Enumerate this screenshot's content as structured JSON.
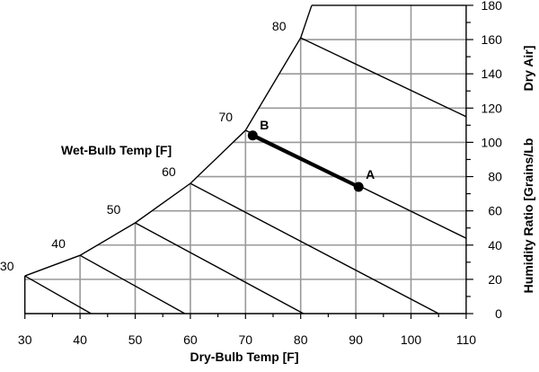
{
  "chart_data": {
    "type": "line",
    "title": "",
    "xlabel": "Dry-Bulb Temp [F]",
    "ylabel_part1": "Humidity Ratio [Grains/Lb",
    "ylabel_part2": "Dry Air]",
    "wetbulb_label": "Wet-Bulb Temp [F]",
    "xlim": [
      30,
      110
    ],
    "ylim": [
      0,
      180
    ],
    "x_ticks": [
      "30",
      "40",
      "50",
      "60",
      "70",
      "80",
      "90",
      "100",
      "110"
    ],
    "y_ticks": [
      "0",
      "20",
      "40",
      "60",
      "80",
      "100",
      "120",
      "140",
      "160",
      "180"
    ],
    "grid": true,
    "saturation_curve": [
      [
        30,
        22
      ],
      [
        40,
        34
      ],
      [
        50,
        53
      ],
      [
        60,
        76
      ],
      [
        70,
        107
      ],
      [
        80,
        161
      ],
      [
        82,
        180
      ]
    ],
    "wet_bulb_lines": [
      {
        "label": "30",
        "points": [
          [
            30,
            22
          ],
          [
            42,
            0
          ]
        ]
      },
      {
        "label": "40",
        "points": [
          [
            40,
            34
          ],
          [
            59,
            0
          ]
        ]
      },
      {
        "label": "50",
        "points": [
          [
            50,
            53
          ],
          [
            80.5,
            0
          ]
        ]
      },
      {
        "label": "60",
        "points": [
          [
            60,
            76
          ],
          [
            105,
            0
          ]
        ]
      },
      {
        "label": "70",
        "points": [
          [
            70,
            107
          ],
          [
            110,
            44
          ]
        ]
      },
      {
        "label": "80",
        "points": [
          [
            80,
            161
          ],
          [
            110,
            115
          ]
        ]
      }
    ],
    "process_line": {
      "points": [
        {
          "label": "B",
          "x": 71.3,
          "y": 104
        },
        {
          "label": "A",
          "x": 90.5,
          "y": 74
        }
      ]
    }
  }
}
